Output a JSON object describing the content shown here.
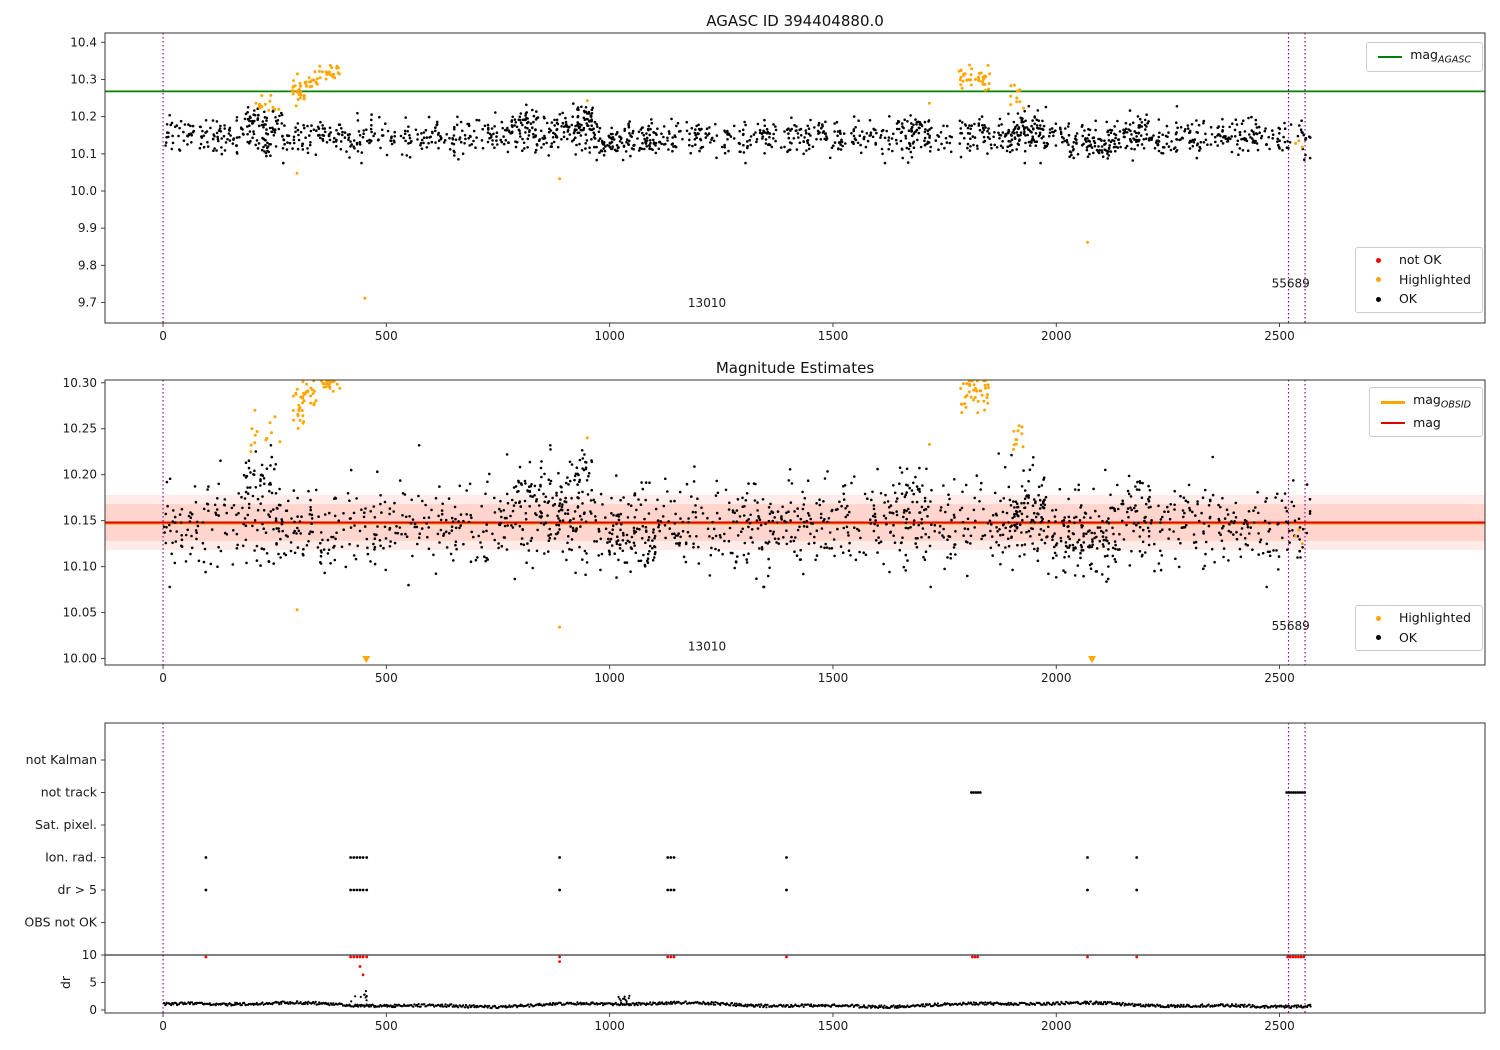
{
  "colors": {
    "ok": "#000000",
    "highlighted": "#ffa500",
    "not_ok": "#ff0000",
    "agasc_line": "#008000",
    "obsid_line": "#ffa500",
    "mag_line": "#e00000",
    "vline": "#990099",
    "spine": "#333333",
    "band_outer": "rgba(255,100,70,0.13)",
    "band_inner": "rgba(255,100,70,0.16)"
  },
  "chart_data": [
    {
      "type": "scatter",
      "title": "AGASC ID 394404880.0",
      "xlim": [
        -130,
        2960
      ],
      "ylim": [
        9.645,
        10.425
      ],
      "xticks": [
        0,
        500,
        1000,
        1500,
        2000,
        2500
      ],
      "yticks": [
        9.7,
        9.8,
        9.9,
        10.0,
        10.1,
        10.2,
        10.3,
        10.4
      ],
      "ytick_labels": [
        "9.7",
        "9.8",
        "9.9",
        "10.0",
        "10.1",
        "10.2",
        "10.3",
        "10.4"
      ],
      "hline": {
        "value": 10.268,
        "color": "#008000",
        "label": {
          "text": "mag",
          "sub": "AGASC"
        }
      },
      "vlines": [
        0,
        2520,
        2557
      ],
      "annotations": [
        {
          "text": "13010",
          "x": 1218,
          "y": 9.688
        },
        {
          "text": "55689",
          "x": 2525,
          "y": 9.74
        }
      ],
      "legend_markers": [
        {
          "label": "not OK",
          "color": "#ff0000"
        },
        {
          "label": "Highlighted",
          "color": "#ffa500"
        },
        {
          "label": "OK",
          "color": "#000000"
        }
      ],
      "series": {
        "ok": {
          "seed": 11,
          "n": 1350,
          "x": [
            2,
            2570
          ],
          "mean": 10.145,
          "std": 0.024,
          "clip": [
            10.075,
            10.235
          ],
          "bumps": [
            {
              "x": [
                180,
                268
              ],
              "n": 50,
              "mean": 10.19,
              "std": 0.02
            },
            {
              "x": [
                780,
                968
              ],
              "n": 90,
              "mean": 10.18,
              "std": 0.022
            },
            {
              "x": [
                925,
                962
              ],
              "n": 18,
              "mean": 10.205,
              "std": 0.012
            },
            {
              "x": [
                1640,
                1718
              ],
              "n": 36,
              "mean": 10.175,
              "std": 0.016
            },
            {
              "x": [
                1885,
                1978
              ],
              "n": 60,
              "mean": 10.165,
              "std": 0.025
            },
            {
              "x": [
                2148,
                2208
              ],
              "n": 26,
              "mean": 10.17,
              "std": 0.018
            },
            {
              "x": [
                975,
                1105
              ],
              "n": 55,
              "mean": 10.125,
              "std": 0.015
            },
            {
              "x": [
                2015,
                2145
              ],
              "n": 55,
              "mean": 10.12,
              "std": 0.016
            }
          ]
        },
        "highlighted": {
          "clusters": [
            {
              "x": [
                196,
                262
              ],
              "n": 13,
              "mean": 10.23,
              "std": 0.015,
              "clip": [
                10.195,
                10.262
              ]
            },
            {
              "x": [
                288,
                318
              ],
              "n": 26,
              "mean": 10.262,
              "std": 0.022,
              "clip": [
                10.21,
                10.315
              ]
            },
            {
              "x": [
                318,
                346
              ],
              "n": 16,
              "mean": 10.3,
              "std": 0.015,
              "clip": [
                10.26,
                10.33
              ]
            },
            {
              "x": [
                346,
                396
              ],
              "n": 22,
              "mean": 10.322,
              "std": 0.013,
              "clip": [
                10.29,
                10.352
              ]
            },
            {
              "x": [
                1782,
                1852
              ],
              "n": 40,
              "mean": 10.3,
              "std": 0.018,
              "clip": [
                10.255,
                10.34
              ]
            },
            {
              "x": [
                1898,
                1930
              ],
              "n": 11,
              "mean": 10.25,
              "std": 0.018,
              "clip": [
                10.215,
                10.285
              ]
            }
          ],
          "singles": [
            [
              300,
              10.048
            ],
            [
              452,
              9.712
            ],
            [
              888,
              10.033
            ],
            [
              950,
              10.243
            ],
            [
              1716,
              10.236
            ],
            [
              2070,
              9.862
            ],
            [
              2536,
              10.128
            ],
            [
              2543,
              10.135
            ],
            [
              2551,
              10.118
            ]
          ]
        }
      }
    },
    {
      "type": "scatter",
      "title": "Magnitude Estimates",
      "xlim": [
        -130,
        2960
      ],
      "ylim": [
        9.993,
        10.303
      ],
      "xticks": [
        0,
        500,
        1000,
        1500,
        2000,
        2500
      ],
      "yticks": [
        10.0,
        10.05,
        10.1,
        10.15,
        10.2,
        10.25,
        10.3
      ],
      "ytick_labels": [
        "10.00",
        "10.05",
        "10.10",
        "10.15",
        "10.20",
        "10.25",
        "10.30"
      ],
      "bands": [
        {
          "y": [
            10.118,
            10.178
          ]
        },
        {
          "y": [
            10.128,
            10.168
          ]
        }
      ],
      "lines": [
        {
          "value": 10.1475,
          "color": "#ffa500",
          "width": 3,
          "label": {
            "text": "mag",
            "sub": "OBSID"
          }
        },
        {
          "value": 10.148,
          "color": "#e00000",
          "width": 2,
          "label": {
            "text": "mag",
            "sub": ""
          }
        }
      ],
      "vlines": [
        0,
        2520,
        2557
      ],
      "annotations": [
        {
          "text": "13010",
          "x": 1218,
          "y": 10.009
        },
        {
          "text": "55689",
          "x": 2525,
          "y": 10.031
        }
      ],
      "legend_markers": [
        {
          "label": "Highlighted",
          "color": "#ffa500"
        },
        {
          "label": "OK",
          "color": "#000000"
        }
      ],
      "series": {
        "ok": {
          "seed": 21,
          "n": 1350,
          "x": [
            2,
            2570
          ],
          "mean": 10.145,
          "std": 0.024,
          "clip": [
            10.078,
            10.232
          ],
          "bumps": [
            {
              "x": [
                180,
                268
              ],
              "n": 50,
              "mean": 10.19,
              "std": 0.02
            },
            {
              "x": [
                780,
                968
              ],
              "n": 90,
              "mean": 10.18,
              "std": 0.022
            },
            {
              "x": [
                925,
                962
              ],
              "n": 18,
              "mean": 10.205,
              "std": 0.012
            },
            {
              "x": [
                1640,
                1718
              ],
              "n": 36,
              "mean": 10.175,
              "std": 0.016
            },
            {
              "x": [
                1885,
                1978
              ],
              "n": 60,
              "mean": 10.165,
              "std": 0.025
            },
            {
              "x": [
                2148,
                2208
              ],
              "n": 26,
              "mean": 10.17,
              "std": 0.018
            },
            {
              "x": [
                975,
                1105
              ],
              "n": 55,
              "mean": 10.125,
              "std": 0.015
            },
            {
              "x": [
                2015,
                2145
              ],
              "n": 55,
              "mean": 10.12,
              "std": 0.016
            }
          ]
        },
        "highlighted": {
          "clusters": [
            {
              "x": [
                196,
                262
              ],
              "n": 13,
              "mean": 10.245,
              "std": 0.012,
              "clip": [
                10.22,
                10.27
              ]
            },
            {
              "x": [
                288,
                318
              ],
              "n": 26,
              "mean": 10.272,
              "std": 0.015,
              "clip": [
                10.235,
                10.301
              ]
            },
            {
              "x": [
                318,
                346
              ],
              "n": 16,
              "mean": 10.292,
              "std": 0.01,
              "clip": [
                10.26,
                10.302
              ]
            },
            {
              "x": [
                346,
                396
              ],
              "n": 22,
              "mean": 10.299,
              "std": 0.004,
              "clip": [
                10.285,
                10.302
              ]
            },
            {
              "x": [
                1782,
                1852
              ],
              "n": 40,
              "mean": 10.29,
              "std": 0.012,
              "clip": [
                10.26,
                10.302
              ]
            },
            {
              "x": [
                1898,
                1930
              ],
              "n": 11,
              "mean": 10.24,
              "std": 0.015,
              "clip": [
                10.215,
                10.268
              ]
            }
          ],
          "singles": [
            [
              300,
              10.053
            ],
            [
              888,
              10.034
            ],
            [
              950,
              10.24
            ],
            [
              1716,
              10.233
            ],
            [
              2536,
              10.133
            ],
            [
              2543,
              10.14
            ],
            [
              2551,
              10.125
            ]
          ],
          "clipped_low": [
            455,
            2080
          ]
        }
      }
    },
    {
      "type": "flags",
      "xlim": [
        -130,
        2960
      ],
      "xticks": [
        0,
        500,
        1000,
        1500,
        2000,
        2500
      ],
      "rows": [
        "not Kalman",
        "not track",
        "Sat. pixel.",
        "Ion. rad.",
        "dr > 5",
        "OBS not OK"
      ],
      "vlines": [
        0,
        2520,
        2557
      ],
      "flags": {
        "not Kalman": [],
        "not track": [
          1810,
          1815,
          1820,
          1825,
          1830,
          2516,
          2521,
          2526,
          2531,
          2536,
          2541,
          2546,
          2551,
          2556
        ],
        "Sat. pixel.": [],
        "Ion. rad.": [
          96,
          420,
          427,
          434,
          441,
          448,
          456,
          888,
          1130,
          1137,
          1144,
          1396,
          2070,
          2180
        ],
        "dr > 5": [
          96,
          420,
          427,
          434,
          441,
          448,
          456,
          888,
          1130,
          1137,
          1144,
          1396,
          2070,
          2180
        ],
        "OBS not OK": []
      },
      "dr_axis": {
        "label": "dr",
        "ticks": [
          0,
          5,
          10
        ],
        "tick_labels": [
          "0",
          "5",
          "10"
        ],
        "max_line": 10,
        "red_at_line": [
          96,
          420,
          427,
          434,
          441,
          448,
          456,
          888,
          1130,
          1137,
          1144,
          1396,
          1812,
          1818,
          1824,
          2070,
          2180,
          2518,
          2524,
          2530,
          2536,
          2542,
          2548,
          2554
        ],
        "red_points": [
          [
            441,
            7.9
          ],
          [
            448,
            6.4
          ],
          [
            888,
            8.8
          ]
        ],
        "trace": {
          "seed": 31,
          "n": 1150,
          "x": [
            2,
            2570
          ],
          "base": 0.95,
          "wiggle": 0.5,
          "clip": [
            0.08,
            2.3
          ]
        },
        "spikes": [
          {
            "x": [
              420,
              458
            ],
            "n": 9,
            "mean": 2.8,
            "std": 0.6
          },
          {
            "x": [
              1015,
              1045
            ],
            "n": 10,
            "mean": 2.1,
            "std": 0.25
          }
        ]
      }
    }
  ]
}
